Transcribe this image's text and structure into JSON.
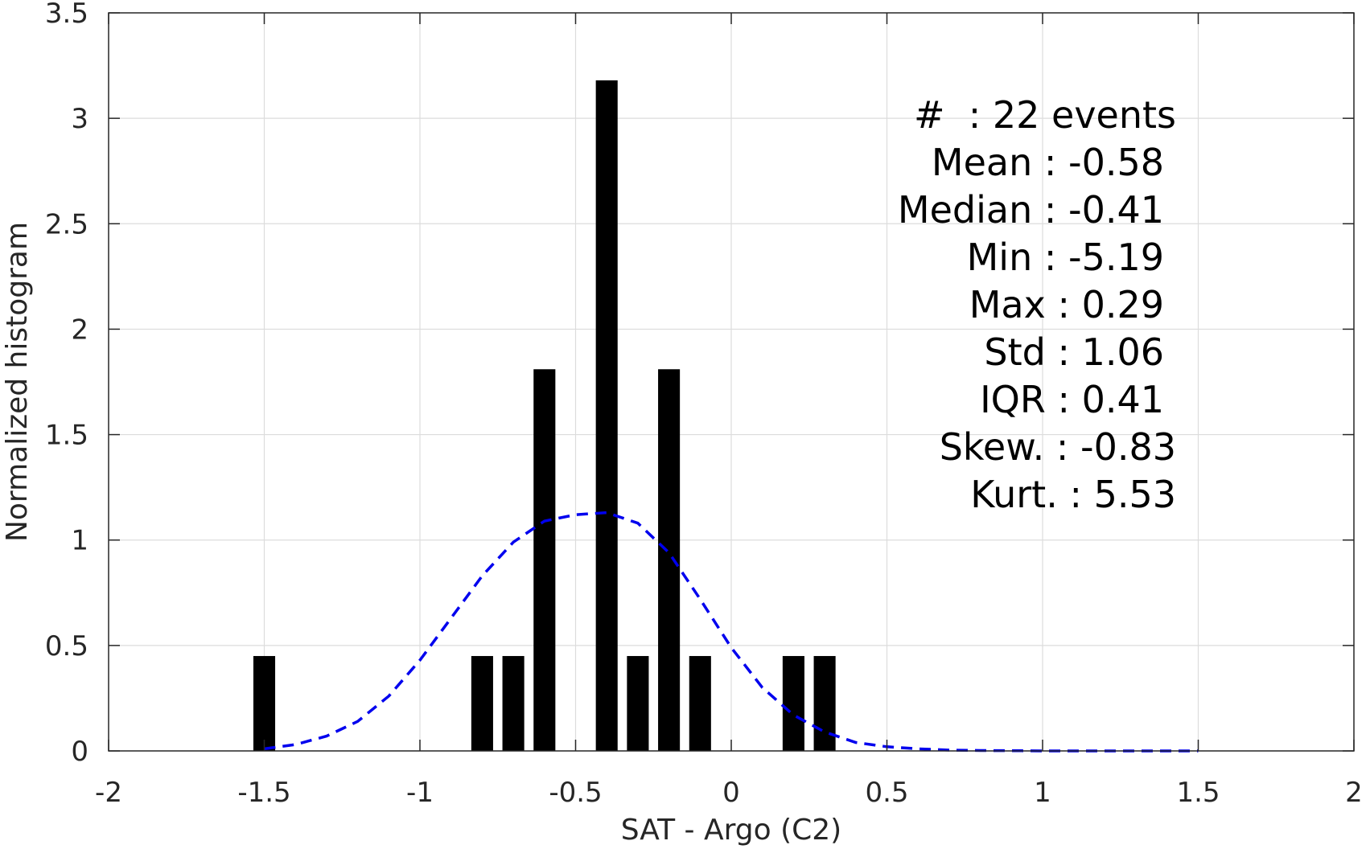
{
  "chart_data": {
    "type": "bar",
    "xlabel": "SAT - Argo (C2)",
    "ylabel": "Normalized histogram",
    "xlim": [
      -2,
      2
    ],
    "ylim": [
      0,
      3.5
    ],
    "grid": true,
    "x_ticks": [
      {
        "v": -2,
        "label": "-2"
      },
      {
        "v": -1.5,
        "label": "-1.5"
      },
      {
        "v": -1,
        "label": "-1"
      },
      {
        "v": -0.5,
        "label": "-0.5"
      },
      {
        "v": 0,
        "label": "0"
      },
      {
        "v": 0.5,
        "label": "0.5"
      },
      {
        "v": 1,
        "label": "1"
      },
      {
        "v": 1.5,
        "label": "1.5"
      },
      {
        "v": 2,
        "label": "2"
      }
    ],
    "y_ticks": [
      {
        "v": 0,
        "label": "0"
      },
      {
        "v": 0.5,
        "label": "0.5"
      },
      {
        "v": 1,
        "label": "1"
      },
      {
        "v": 1.5,
        "label": "1.5"
      },
      {
        "v": 2,
        "label": "2"
      },
      {
        "v": 2.5,
        "label": "2.5"
      },
      {
        "v": 3,
        "label": "3"
      },
      {
        "v": 3.5,
        "label": "3.5"
      }
    ],
    "bars": {
      "color": "#000000",
      "width": 0.07,
      "x": [
        -1.5,
        -0.8,
        -0.7,
        -0.6,
        -0.4,
        -0.3,
        -0.2,
        -0.1,
        0.2,
        0.3
      ],
      "values": [
        0.45,
        0.45,
        0.45,
        1.81,
        3.18,
        0.45,
        1.81,
        0.45,
        0.45,
        0.45
      ]
    },
    "fit_curve": {
      "style": "dashed",
      "color": "#0000ee",
      "x": [
        -1.5,
        -1.4,
        -1.3,
        -1.2,
        -1.1,
        -1.0,
        -0.9,
        -0.8,
        -0.7,
        -0.6,
        -0.5,
        -0.4,
        -0.3,
        -0.2,
        -0.1,
        0.0,
        0.1,
        0.2,
        0.3,
        0.4,
        0.5,
        0.6,
        0.7,
        0.8,
        0.9,
        1.0,
        1.1,
        1.2,
        1.3,
        1.4,
        1.5
      ],
      "y": [
        0.01,
        0.03,
        0.07,
        0.14,
        0.26,
        0.43,
        0.63,
        0.83,
        0.99,
        1.09,
        1.12,
        1.13,
        1.08,
        0.94,
        0.72,
        0.49,
        0.3,
        0.17,
        0.09,
        0.04,
        0.02,
        0.01,
        0.004,
        0.002,
        0.001,
        0,
        0,
        0,
        0,
        0,
        0
      ]
    },
    "annotations": [
      "#  : 22 events",
      "Mean : -0.58",
      "Median : -0.41",
      "Min : -5.19",
      "Max : 0.29",
      "Std : 1.06",
      "IQR : 0.41",
      "Skew. : -0.83",
      "Kurt. : 5.53"
    ]
  }
}
